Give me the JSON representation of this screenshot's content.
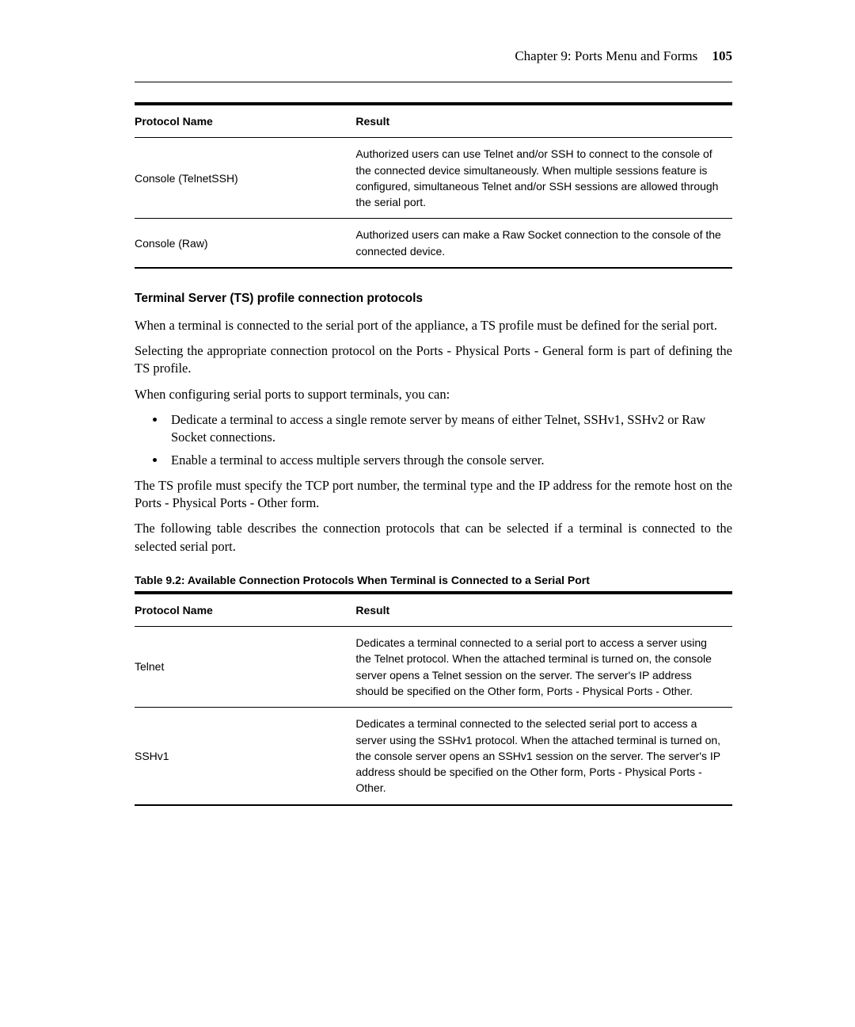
{
  "header": {
    "chapter_label": "Chapter 9: Ports Menu and Forms",
    "page_number": "105"
  },
  "table1": {
    "headers": {
      "protocol_name": "Protocol Name",
      "result": "Result"
    },
    "rows": [
      {
        "name": "Console (TelnetSSH)",
        "result": "Authorized users can use Telnet and/or SSH to connect to the console of the connected device simultaneously. When multiple sessions feature is configured, simultaneous Telnet and/or SSH sessions are allowed through the serial port."
      },
      {
        "name": "Console (Raw)",
        "result": "Authorized users can make a Raw Socket connection to the console of the connected device."
      }
    ]
  },
  "section": {
    "heading": "Terminal Server (TS) profile connection protocols",
    "para1": "When a terminal is connected to the serial port of the appliance, a TS profile must be defined for the serial port.",
    "para2": "Selecting the appropriate connection protocol on the Ports - Physical Ports - General form is part of defining the TS profile.",
    "para3": "When configuring serial ports to support terminals, you can:",
    "bullets": [
      "Dedicate a terminal to access a single remote server by means of either Telnet, SSHv1, SSHv2 or Raw Socket connections.",
      "Enable a terminal to access multiple servers through the console server."
    ],
    "para4": "The TS profile must specify the TCP port number, the terminal type and the IP address for the remote host on the Ports - Physical Ports - Other form.",
    "para5": "The following table describes the connection protocols that can be selected if a terminal is connected to the selected serial port."
  },
  "table2": {
    "caption": "Table 9.2: Available Connection Protocols When Terminal is Connected to a Serial Port",
    "headers": {
      "protocol_name": "Protocol Name",
      "result": "Result"
    },
    "rows": [
      {
        "name": "Telnet",
        "result": "Dedicates a terminal connected to a serial port to access a server using the Telnet protocol. When the attached terminal is turned on, the console server opens a Telnet session on the server. The server's IP address should be specified on the Other form, Ports - Physical Ports - Other."
      },
      {
        "name": "SSHv1",
        "result": "Dedicates a terminal connected to the selected serial port to access a server using the SSHv1 protocol. When the attached terminal is turned on, the console server opens an SSHv1 session on the server. The server's IP address should be specified on the Other form, Ports - Physical Ports - Other."
      }
    ]
  }
}
